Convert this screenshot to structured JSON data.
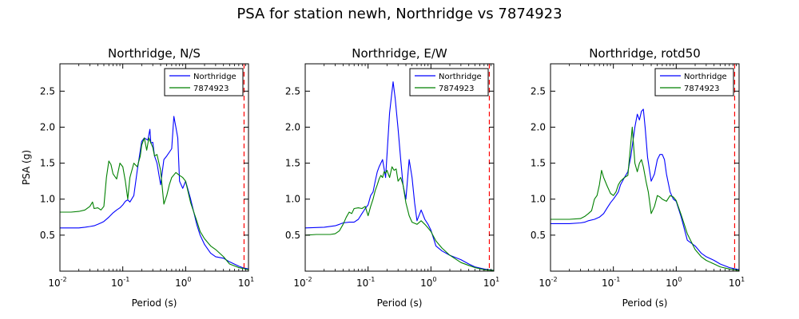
{
  "figure": {
    "title": "PSA for station newh, Northridge vs 7874923"
  },
  "colors": {
    "northridge": "#0000ff",
    "comparison": "#008000",
    "limit_line": "#ff0000"
  },
  "chart_data": [
    {
      "type": "line",
      "title": "Northridge, N/S",
      "xlabel": "Period (s)",
      "ylabel": "PSA (g)",
      "xscale": "log",
      "xlim": [
        0.01,
        10
      ],
      "ylim": [
        0,
        2.88
      ],
      "xticks": [
        {
          "base": "10",
          "exp": "-2"
        },
        {
          "base": "10",
          "exp": "-1"
        },
        {
          "base": "10",
          "exp": "0"
        },
        {
          "base": "10",
          "exp": "1"
        }
      ],
      "yticks": [
        "0.5",
        "1.0",
        "1.5",
        "2.0",
        "2.5"
      ],
      "ytick_values": [
        0.5,
        1.0,
        1.5,
        2.0,
        2.5
      ],
      "vline_x": 8.5,
      "legend_position": "upper right",
      "legend": [
        "Northridge",
        "7874923"
      ],
      "series": [
        {
          "name": "Northridge",
          "x": [
            0.01,
            0.02,
            0.025,
            0.03,
            0.035,
            0.04,
            0.045,
            0.05,
            0.06,
            0.07,
            0.08,
            0.09,
            0.1,
            0.11,
            0.12,
            0.13,
            0.15,
            0.17,
            0.2,
            0.22,
            0.25,
            0.27,
            0.28,
            0.3,
            0.32,
            0.35,
            0.4,
            0.45,
            0.5,
            0.6,
            0.65,
            0.7,
            0.75,
            0.8,
            0.9,
            1.0,
            1.2,
            1.5,
            1.7,
            2.0,
            2.5,
            3.0,
            4.0,
            5.0,
            7.0,
            8.0,
            10.0
          ],
          "y": [
            0.6,
            0.6,
            0.61,
            0.62,
            0.63,
            0.65,
            0.67,
            0.69,
            0.75,
            0.81,
            0.85,
            0.88,
            0.92,
            0.97,
            0.99,
            0.96,
            1.05,
            1.4,
            1.8,
            1.85,
            1.82,
            1.97,
            1.78,
            1.79,
            1.6,
            1.5,
            1.2,
            1.55,
            1.6,
            1.7,
            2.15,
            2.0,
            1.85,
            1.25,
            1.15,
            1.25,
            1.0,
            0.65,
            0.5,
            0.37,
            0.25,
            0.2,
            0.18,
            0.13,
            0.07,
            0.05,
            0.03
          ]
        },
        {
          "name": "7874923",
          "x": [
            0.01,
            0.015,
            0.02,
            0.025,
            0.03,
            0.033,
            0.035,
            0.04,
            0.045,
            0.05,
            0.055,
            0.06,
            0.065,
            0.07,
            0.08,
            0.09,
            0.1,
            0.11,
            0.12,
            0.13,
            0.15,
            0.17,
            0.19,
            0.2,
            0.22,
            0.24,
            0.26,
            0.28,
            0.3,
            0.32,
            0.35,
            0.4,
            0.45,
            0.5,
            0.55,
            0.6,
            0.7,
            0.8,
            0.9,
            1.0,
            1.2,
            1.5,
            1.7,
            2.0,
            2.5,
            3.0,
            4.0,
            5.0,
            7.0,
            10.0
          ],
          "y": [
            0.82,
            0.82,
            0.83,
            0.85,
            0.9,
            0.96,
            0.87,
            0.88,
            0.85,
            0.9,
            1.3,
            1.53,
            1.48,
            1.35,
            1.28,
            1.5,
            1.45,
            1.25,
            1.0,
            1.3,
            1.5,
            1.45,
            1.6,
            1.75,
            1.85,
            1.68,
            1.85,
            1.78,
            1.72,
            1.6,
            1.62,
            1.4,
            0.93,
            1.05,
            1.2,
            1.3,
            1.37,
            1.33,
            1.3,
            1.25,
            0.95,
            0.7,
            0.55,
            0.45,
            0.35,
            0.3,
            0.2,
            0.1,
            0.05,
            0.02
          ]
        }
      ]
    },
    {
      "type": "line",
      "title": "Northridge, E/W",
      "xlabel": "Period (s)",
      "ylabel": "",
      "xscale": "log",
      "xlim": [
        0.01,
        10
      ],
      "ylim": [
        0,
        2.88
      ],
      "xticks": [
        {
          "base": "10",
          "exp": "-2"
        },
        {
          "base": "10",
          "exp": "-1"
        },
        {
          "base": "10",
          "exp": "0"
        },
        {
          "base": "10",
          "exp": "1"
        }
      ],
      "yticks": [
        "0.5",
        "1.0",
        "1.5",
        "2.0",
        "2.5"
      ],
      "ytick_values": [
        0.5,
        1.0,
        1.5,
        2.0,
        2.5
      ],
      "vline_x": 8.5,
      "legend_position": "upper right",
      "legend": [
        "Northridge",
        "7874923"
      ],
      "series": [
        {
          "name": "Northridge",
          "x": [
            0.01,
            0.02,
            0.03,
            0.035,
            0.04,
            0.05,
            0.06,
            0.07,
            0.08,
            0.09,
            0.1,
            0.11,
            0.12,
            0.13,
            0.14,
            0.15,
            0.17,
            0.19,
            0.22,
            0.25,
            0.27,
            0.3,
            0.33,
            0.36,
            0.4,
            0.45,
            0.5,
            0.55,
            0.6,
            0.7,
            0.8,
            0.9,
            1.0,
            1.2,
            1.5,
            2.0,
            3.0,
            4.0,
            5.0,
            7.0,
            10.0
          ],
          "y": [
            0.6,
            0.61,
            0.63,
            0.65,
            0.67,
            0.68,
            0.68,
            0.72,
            0.8,
            0.87,
            0.92,
            1.05,
            1.1,
            1.25,
            1.38,
            1.45,
            1.55,
            1.3,
            2.2,
            2.63,
            2.4,
            1.98,
            1.55,
            1.2,
            1.0,
            1.55,
            1.3,
            0.95,
            0.7,
            0.85,
            0.72,
            0.65,
            0.57,
            0.35,
            0.28,
            0.22,
            0.16,
            0.1,
            0.06,
            0.03,
            0.01
          ]
        },
        {
          "name": "7874923",
          "x": [
            0.01,
            0.015,
            0.02,
            0.025,
            0.03,
            0.035,
            0.04,
            0.045,
            0.05,
            0.055,
            0.06,
            0.07,
            0.08,
            0.09,
            0.1,
            0.11,
            0.12,
            0.13,
            0.14,
            0.15,
            0.16,
            0.17,
            0.18,
            0.19,
            0.2,
            0.22,
            0.24,
            0.26,
            0.28,
            0.3,
            0.33,
            0.36,
            0.4,
            0.45,
            0.5,
            0.6,
            0.7,
            0.8,
            0.9,
            1.0,
            1.2,
            1.5,
            2.0,
            3.0,
            4.0,
            5.0,
            7.0,
            10.0
          ],
          "y": [
            0.5,
            0.51,
            0.51,
            0.51,
            0.52,
            0.56,
            0.65,
            0.75,
            0.82,
            0.8,
            0.87,
            0.88,
            0.87,
            0.9,
            0.77,
            0.9,
            1.0,
            1.12,
            1.2,
            1.28,
            1.33,
            1.3,
            1.38,
            1.36,
            1.4,
            1.3,
            1.45,
            1.4,
            1.42,
            1.25,
            1.3,
            1.2,
            0.95,
            0.77,
            0.68,
            0.65,
            0.7,
            0.65,
            0.6,
            0.55,
            0.42,
            0.32,
            0.22,
            0.12,
            0.08,
            0.05,
            0.02,
            0.01
          ]
        }
      ]
    },
    {
      "type": "line",
      "title": "Northridge, rotd50",
      "xlabel": "Period (s)",
      "ylabel": "",
      "xscale": "log",
      "xlim": [
        0.01,
        10
      ],
      "ylim": [
        0,
        2.88
      ],
      "xticks": [
        {
          "base": "10",
          "exp": "-2"
        },
        {
          "base": "10",
          "exp": "-1"
        },
        {
          "base": "10",
          "exp": "0"
        },
        {
          "base": "10",
          "exp": "1"
        }
      ],
      "yticks": [
        "0.5",
        "1.0",
        "1.5",
        "2.0",
        "2.5"
      ],
      "ytick_values": [
        0.5,
        1.0,
        1.5,
        2.0,
        2.5
      ],
      "vline_x": 8.5,
      "legend_position": "upper right",
      "legend": [
        "Northridge",
        "7874923"
      ],
      "series": [
        {
          "name": "Northridge",
          "x": [
            0.01,
            0.02,
            0.03,
            0.035,
            0.04,
            0.05,
            0.06,
            0.07,
            0.08,
            0.09,
            0.1,
            0.11,
            0.12,
            0.13,
            0.15,
            0.17,
            0.19,
            0.22,
            0.24,
            0.26,
            0.28,
            0.3,
            0.32,
            0.35,
            0.4,
            0.45,
            0.5,
            0.55,
            0.6,
            0.65,
            0.7,
            0.8,
            0.9,
            1.0,
            1.2,
            1.5,
            2.0,
            2.5,
            3.0,
            4.0,
            5.0,
            7.0,
            10.0
          ],
          "y": [
            0.66,
            0.66,
            0.67,
            0.68,
            0.7,
            0.72,
            0.75,
            0.8,
            0.88,
            0.95,
            1.0,
            1.05,
            1.1,
            1.2,
            1.3,
            1.38,
            1.6,
            2.0,
            2.18,
            2.1,
            2.22,
            2.25,
            2.0,
            1.58,
            1.25,
            1.35,
            1.55,
            1.62,
            1.62,
            1.55,
            1.35,
            1.1,
            1.0,
            0.97,
            0.75,
            0.43,
            0.35,
            0.25,
            0.2,
            0.15,
            0.1,
            0.05,
            0.02
          ]
        },
        {
          "name": "7874923",
          "x": [
            0.01,
            0.02,
            0.03,
            0.035,
            0.04,
            0.045,
            0.05,
            0.055,
            0.06,
            0.065,
            0.07,
            0.08,
            0.09,
            0.1,
            0.11,
            0.12,
            0.13,
            0.15,
            0.17,
            0.2,
            0.22,
            0.24,
            0.26,
            0.28,
            0.3,
            0.33,
            0.36,
            0.4,
            0.45,
            0.5,
            0.55,
            0.6,
            0.7,
            0.8,
            0.9,
            1.0,
            1.2,
            1.5,
            2.0,
            2.5,
            3.0,
            4.0,
            5.0,
            7.0,
            10.0
          ],
          "y": [
            0.72,
            0.72,
            0.73,
            0.76,
            0.8,
            0.84,
            1.0,
            1.05,
            1.2,
            1.4,
            1.3,
            1.18,
            1.08,
            1.05,
            1.1,
            1.2,
            1.25,
            1.3,
            1.33,
            2.0,
            1.5,
            1.38,
            1.5,
            1.55,
            1.45,
            1.25,
            1.1,
            0.8,
            0.9,
            1.05,
            1.03,
            1.0,
            0.97,
            1.05,
            1.03,
            0.98,
            0.78,
            0.52,
            0.3,
            0.2,
            0.15,
            0.1,
            0.06,
            0.03,
            0.01
          ]
        }
      ]
    }
  ]
}
